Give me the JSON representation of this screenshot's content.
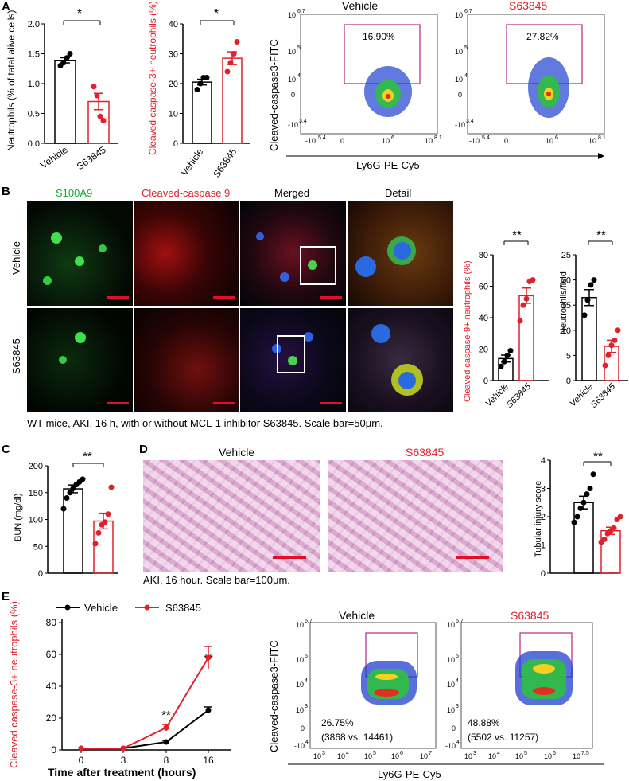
{
  "panels": {
    "A": {
      "label": "A",
      "chart1": {
        "ylabel": "Neutrophils (% of tatal alive cells)",
        "sig": "*",
        "yticks": [
          "0.0",
          "0.5",
          "1.0",
          "1.5",
          "2.0"
        ],
        "xcats": [
          "Vehicle",
          "S63845"
        ]
      },
      "chart2": {
        "ylabel": "Cleaved caspase-3+ neutrophils (%)",
        "sig": "*",
        "yticks": [
          "0",
          "10",
          "20",
          "30",
          "40"
        ],
        "xcats": [
          "Vehicle",
          "S63845"
        ]
      },
      "flow": {
        "ylabel": "Cleaved-caspase3-FITC",
        "xlabel": "Ly6G-PE-Cy5",
        "plot1": {
          "title": "Vehicle",
          "gate": "16.90%"
        },
        "plot2": {
          "title": "S63845",
          "gate": "27.82%"
        },
        "yticks": [
          "10^6.7",
          "10^5",
          "10^4",
          "0",
          "-10^3.4"
        ],
        "xticks": [
          "-10^5.4",
          "0",
          "10^6",
          "10^8.1"
        ]
      }
    },
    "B": {
      "label": "B",
      "cols": [
        "S100A9",
        "Cleaved-caspase 9",
        "Merged",
        "Detail"
      ],
      "rows": [
        "Vehicle",
        "S63845"
      ],
      "caption": "WT mice, AKI, 16 h, with or without MCL-1 inhibitor S63845. Scale bar=50μm.",
      "chart1": {
        "ylabel": "Cleaved caspase-9+ neutrophils (%)",
        "sig": "**",
        "yticks": [
          "0",
          "20",
          "40",
          "60",
          "80"
        ],
        "xcats": [
          "Vehicle",
          "S63845"
        ]
      },
      "chart2": {
        "ylabel": "Neutrophils/field",
        "sig": "**",
        "yticks": [
          "0",
          "5",
          "10",
          "15",
          "20",
          "25"
        ],
        "xcats": [
          "Vehicle",
          "S63845"
        ]
      }
    },
    "C": {
      "label": "C",
      "chart": {
        "ylabel": "BUN (mg/dl)",
        "sig": "**",
        "yticks": [
          "0",
          "50",
          "100",
          "150",
          "200"
        ]
      }
    },
    "D": {
      "label": "D",
      "img1": "Vehicle",
      "img2": "S63845",
      "caption": "AKI, 16 hour. Scale bar=100μm.",
      "chart": {
        "ylabel": "Tubular injury score",
        "sig": "**",
        "yticks": [
          "0",
          "1",
          "2",
          "3",
          "4"
        ]
      }
    },
    "E": {
      "label": "E",
      "legend": [
        "Vehicle",
        "S63845"
      ],
      "ylabel": "Cleaved caspase-3+ neutrophils (%)",
      "xlabel": "Time after treatment (hours)",
      "yticks": [
        "0",
        "20",
        "40",
        "60",
        "80"
      ],
      "xticks": [
        "0",
        "3",
        "8",
        "16"
      ],
      "sig8": "**",
      "sig16": "**",
      "flow": {
        "ylabel": "Cleaved-caspase3-FITC",
        "xlabel": "Ly6G-PE-Cy5",
        "plot1": {
          "title": "Vehicle",
          "pct": "26.75%",
          "ratio": "(3868 vs. 14461)"
        },
        "plot2": {
          "title": "S63845",
          "pct": "48.88%",
          "ratio": "(5502 vs. 11257)"
        },
        "yticks": [
          "10^6.7",
          "10^5",
          "10^4",
          "10^3",
          "0",
          "-10^4"
        ],
        "xticks1": [
          "10^3",
          "10^4",
          "10^5",
          "10^6",
          "10^7"
        ],
        "xticks2": [
          "10^3",
          "10^4",
          "10^5",
          "10^6",
          "10^7.5"
        ]
      }
    }
  },
  "chart_data": [
    {
      "type": "bar",
      "panel": "A-1",
      "categories": [
        "Vehicle",
        "S63845"
      ],
      "values": [
        1.39,
        0.7
      ],
      "points": [
        [
          1.3,
          1.35,
          1.43,
          1.5
        ],
        [
          0.95,
          0.8,
          0.45,
          0.38
        ]
      ],
      "ylim": [
        0,
        2.0
      ],
      "colors": [
        "#000000",
        "#e0202b"
      ]
    },
    {
      "type": "bar",
      "panel": "A-2",
      "categories": [
        "Vehicle",
        "S63845"
      ],
      "values": [
        20.5,
        28.5
      ],
      "points": [
        [
          18,
          20,
          22,
          22
        ],
        [
          24,
          27,
          30,
          34
        ]
      ],
      "ylim": [
        0,
        40
      ],
      "colors": [
        "#000000",
        "#e0202b"
      ]
    },
    {
      "type": "bar",
      "panel": "B-1",
      "categories": [
        "Vehicle",
        "S63845"
      ],
      "values": [
        14,
        54
      ],
      "points": [
        [
          9,
          12,
          16,
          19
        ],
        [
          38,
          48,
          52,
          63,
          64
        ]
      ],
      "ylim": [
        0,
        80
      ],
      "colors": [
        "#000000",
        "#e0202b"
      ]
    },
    {
      "type": "bar",
      "panel": "B-2",
      "categories": [
        "Vehicle",
        "S63845"
      ],
      "values": [
        16.5,
        6.8
      ],
      "points": [
        [
          13,
          16,
          19,
          20
        ],
        [
          3,
          5,
          7,
          8,
          10
        ]
      ],
      "ylim": [
        0,
        25
      ],
      "colors": [
        "#000000",
        "#e0202b"
      ]
    },
    {
      "type": "bar",
      "panel": "C",
      "categories": [
        "Vehicle",
        "S63845"
      ],
      "values": [
        157,
        97
      ],
      "points": [
        [
          120,
          140,
          150,
          158,
          165,
          170,
          175
        ],
        [
          55,
          75,
          90,
          95,
          110,
          160
        ]
      ],
      "ylim": [
        0,
        200
      ],
      "colors": [
        "#000000",
        "#e0202b"
      ]
    },
    {
      "type": "bar",
      "panel": "D",
      "categories": [
        "Vehicle",
        "S63845"
      ],
      "values": [
        2.5,
        1.5
      ],
      "points": [
        [
          1.8,
          2.0,
          2.3,
          2.5,
          2.8,
          3.0,
          3.5
        ],
        [
          1.1,
          1.2,
          1.4,
          1.5,
          1.6,
          1.9,
          2.0
        ]
      ],
      "ylim": [
        0,
        4
      ],
      "colors": [
        "#000000",
        "#e0202b"
      ]
    },
    {
      "type": "line",
      "panel": "E",
      "x": [
        0,
        3,
        8,
        16
      ],
      "series": [
        {
          "name": "Vehicle",
          "values": [
            1,
            1,
            5,
            25
          ]
        },
        {
          "name": "S63845",
          "values": [
            1,
            1,
            14,
            58
          ]
        }
      ],
      "ylim": [
        0,
        80
      ],
      "colors": [
        "#000000",
        "#e0202b"
      ]
    }
  ]
}
